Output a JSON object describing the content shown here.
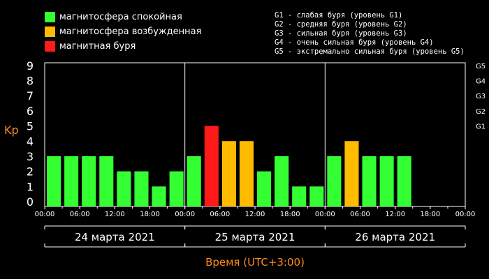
{
  "legend": {
    "items": [
      {
        "label": "магнитосфера спокойная",
        "color": "#33ff33"
      },
      {
        "label": "магнитосфера возбужденная",
        "color": "#ffbb00"
      },
      {
        "label": "магнитная буря",
        "color": "#ff1a1a"
      }
    ],
    "storm_levels": [
      "G1 - слабая буря (уровень G1)",
      "G2 - средняя буря (уровень G2)",
      "G3 - сильная буря (уровень G3)",
      "G4 - очень сильная буря (уровень G4)",
      "G5 - экстремально сильная буря (уровень G5)"
    ]
  },
  "chart_data": {
    "type": "bar",
    "ylabel": "Kp",
    "xlabel": "Время (UTC+3:00)",
    "ylim": [
      0,
      9
    ],
    "yticks": [
      0,
      1,
      2,
      3,
      4,
      5,
      6,
      7,
      8,
      9
    ],
    "g_levels": [
      {
        "label": "G1",
        "kp": 5
      },
      {
        "label": "G2",
        "kp": 6
      },
      {
        "label": "G3",
        "kp": 7
      },
      {
        "label": "G4",
        "kp": 8
      },
      {
        "label": "G5",
        "kp": 9
      }
    ],
    "days": [
      {
        "label": "24 марта 2021",
        "values": [
          3,
          3,
          3,
          3,
          2,
          2,
          1,
          2
        ]
      },
      {
        "label": "25 марта 2021",
        "values": [
          3,
          5,
          4,
          4,
          2,
          3,
          1,
          1
        ]
      },
      {
        "label": "26 марта 2021",
        "values": [
          3,
          4,
          3,
          3,
          3
        ]
      }
    ],
    "time_ticks": [
      "00:00",
      "06:00",
      "12:00",
      "18:00"
    ],
    "end_tick": "00:00",
    "colors": {
      "calm": "#33ff33",
      "active": "#ffbb00",
      "storm": "#ff1a1a",
      "axis_label": "#ff8c1a"
    }
  }
}
